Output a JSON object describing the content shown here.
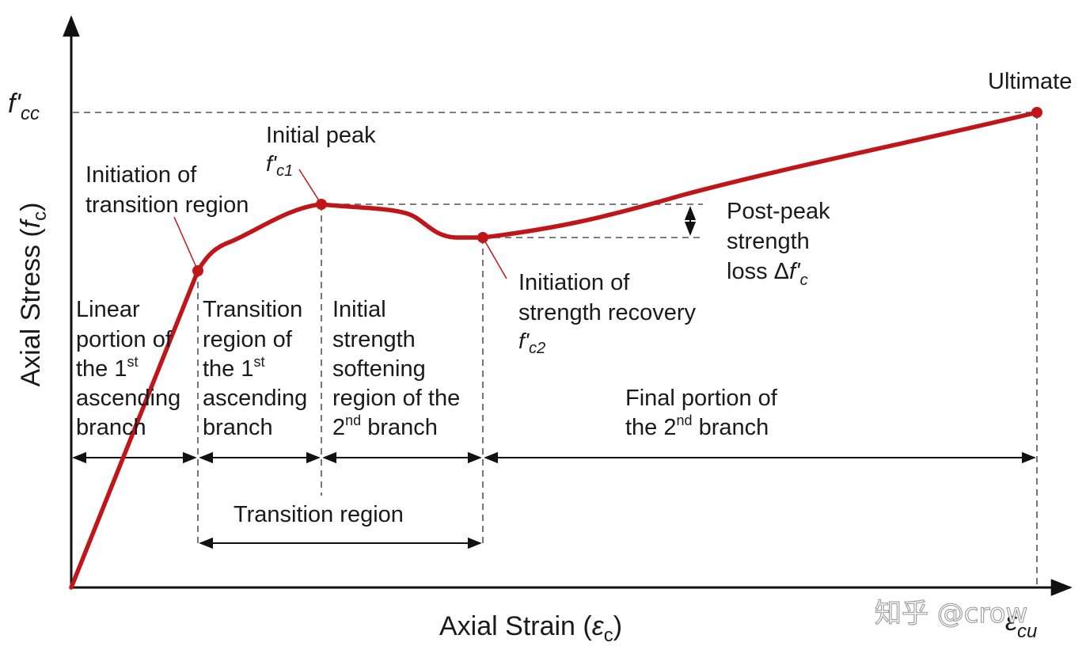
{
  "axes": {
    "y_label": "Axial Stress (",
    "y_symbol": "f",
    "y_sub": "c",
    "y_close": ")",
    "x_label": "Axial Strain (",
    "x_symbol": "ε",
    "x_sub": "c",
    "x_close": ")",
    "fcc_main": "f'",
    "fcc_sub": "cc",
    "ecu_main": "ε",
    "ecu_sub": "cu"
  },
  "points": {
    "ultimate": "Ultimate",
    "initial_peak": "Initial peak",
    "fc1_main": "f'",
    "fc1_sub": "c1",
    "transition_start_1": "Initiation of",
    "transition_start_2": "transition region",
    "recovery_1": "Initiation of",
    "recovery_2": "strength recovery",
    "fc2_main": "f'",
    "fc2_sub": "c2"
  },
  "post_peak": {
    "line1": "Post-peak",
    "line2": "strength",
    "line3_prefix": "loss Δ",
    "line3_symbol": "f'",
    "line3_sub": "c"
  },
  "regions": {
    "linear": {
      "l1": "Linear",
      "l2": "portion of",
      "l3": "the 1",
      "l3_sup": "st",
      "l4": "ascending",
      "l5": "branch"
    },
    "transition": {
      "l1": "Transition",
      "l2": "region of",
      "l3": "the 1",
      "l3_sup": "st",
      "l4": "ascending",
      "l5": "branch"
    },
    "softening": {
      "l1": "Initial",
      "l2": "strength",
      "l3": "softening",
      "l4": "region of the",
      "l5": "2",
      "l5_sup": "nd",
      "l5_rest": " branch"
    },
    "final": {
      "l1": "Final portion of",
      "l2": "the 2",
      "l2_sup": "nd",
      "l2_rest": " branch"
    },
    "transition_region": "Transition region"
  },
  "watermark": "知乎 @crow",
  "colors": {
    "curve": "#c0161a",
    "axis": "#111111",
    "dash": "#555555"
  }
}
